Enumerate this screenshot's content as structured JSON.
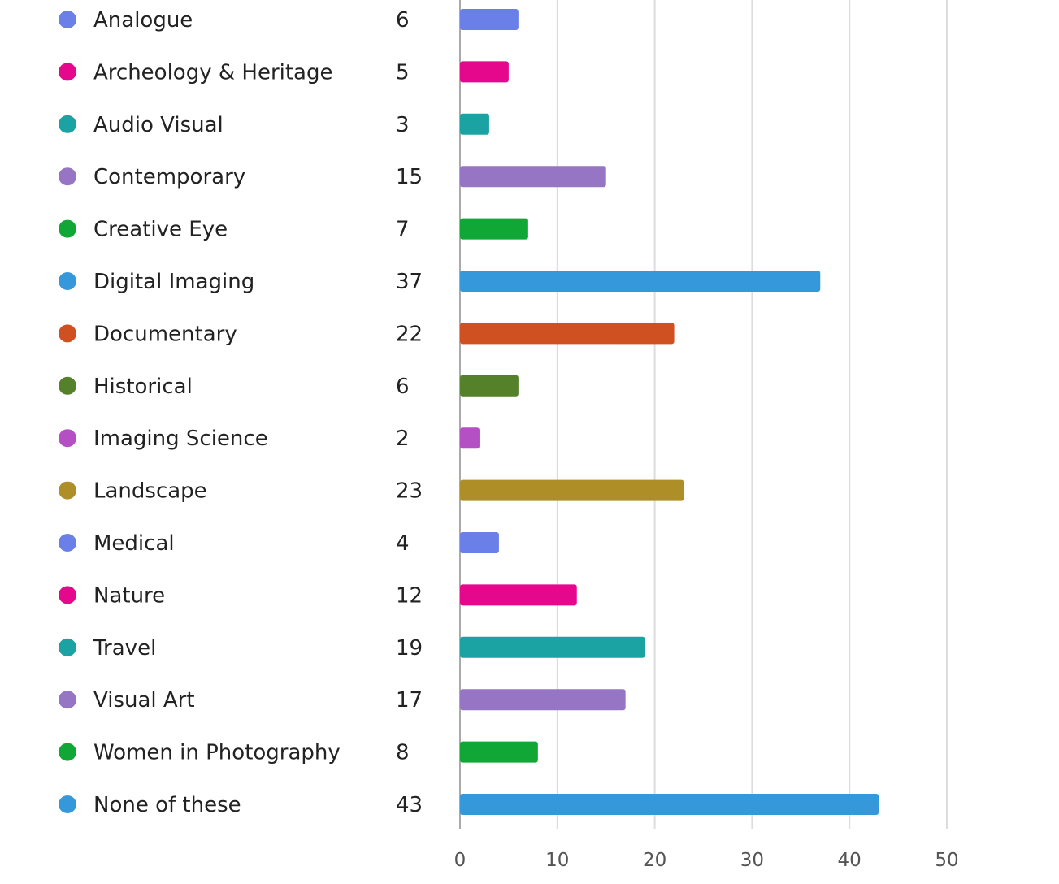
{
  "chart_data": {
    "type": "bar",
    "orientation": "horizontal",
    "title": "",
    "xlabel": "",
    "ylabel": "",
    "xlim": [
      0,
      50
    ],
    "xticks": [
      0,
      10,
      20,
      30,
      40,
      50
    ],
    "grid": true,
    "legend": "inline-left",
    "categories": [
      "Analogue",
      "Archeology & Heritage",
      "Audio Visual",
      "Contemporary",
      "Creative Eye",
      "Digital Imaging",
      "Documentary",
      "Historical",
      "Imaging Science",
      "Landscape",
      "Medical",
      "Nature",
      "Travel",
      "Visual Art",
      "Women in Photography",
      "None of these"
    ],
    "values": [
      6,
      5,
      3,
      15,
      7,
      37,
      22,
      6,
      2,
      23,
      4,
      12,
      19,
      17,
      8,
      43
    ],
    "colors": [
      "#6b7fe8",
      "#e5088c",
      "#1ba3a3",
      "#9575c4",
      "#10a737",
      "#3498db",
      "#cf5020",
      "#548129",
      "#b44fc4",
      "#ad8e27",
      "#6b7fe8",
      "#e5088c",
      "#1ba3a3",
      "#9575c4",
      "#10a737",
      "#3498db"
    ]
  }
}
